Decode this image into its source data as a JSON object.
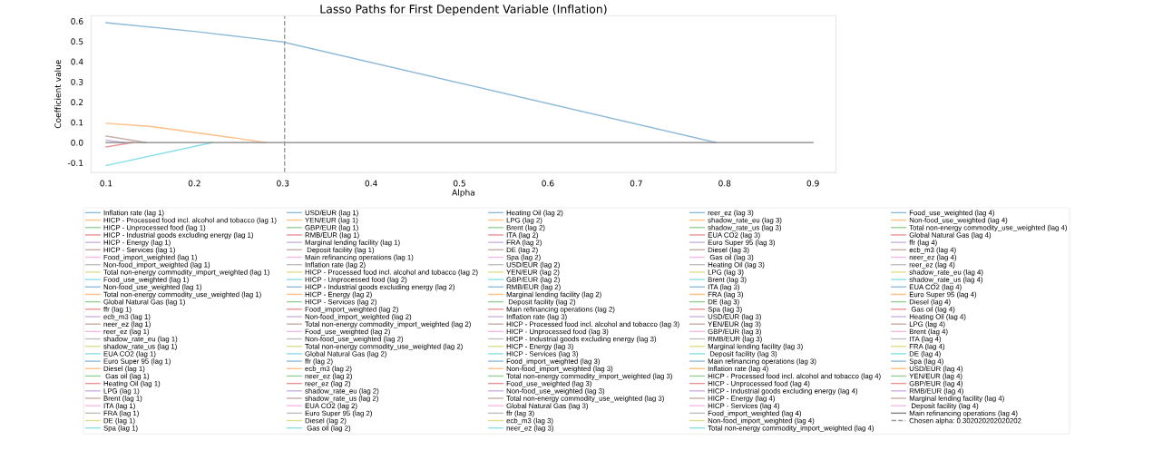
{
  "chart_data": {
    "type": "line",
    "title": "Lasso Paths for First Dependent Variable (Inflation)",
    "xlabel": "Alpha",
    "ylabel": "Coefficient value",
    "xlim": [
      0.083,
      0.926
    ],
    "xticks": [
      0.1,
      0.2,
      0.3,
      0.4,
      0.5,
      0.6,
      0.7,
      0.8,
      0.9
    ],
    "ylim": [
      -0.148,
      0.627
    ],
    "yticks": [
      -0.1,
      {
        "value": 0,
        "label": "0.0"
      },
      0.1,
      0.2,
      0.3,
      0.4,
      0.5,
      0.6
    ],
    "grid": false,
    "legend": "bottom",
    "marker": "none",
    "line_style": "solid",
    "ref_lines": [
      {
        "axis": "x",
        "value": 0.302020202020202,
        "label": "Chosen alpha: 0.302020202020202",
        "color": "#999999",
        "line_style": "dashed"
      }
    ],
    "series": [
      {
        "name": "Inflation rate (lag 1)",
        "color": "#8fbbda",
        "x": [
          0.1,
          0.11,
          0.2,
          0.27,
          0.3,
          0.79
        ],
        "values": [
          0.592,
          0.588,
          0.549,
          0.513,
          0.497,
          0
        ]
      },
      {
        "name": "HICP - Processed food incl. alcohol and tobacco (lag 1)",
        "color": "#ffbf87",
        "x": [
          0.1,
          0.15,
          0.2,
          0.25,
          0.28
        ],
        "values": [
          0.095,
          0.08,
          0.05,
          0.02,
          0
        ]
      },
      {
        "name": "HICP - Unprocessed food (lag 1)",
        "color": "#96d096"
      },
      {
        "name": "HICP - Industrial goods excluding energy (lag 1)",
        "color": "#eb9394",
        "x": [
          0.1,
          0.13
        ],
        "values": [
          -0.022,
          0
        ]
      },
      {
        "name": "HICP - Energy (lag 1)",
        "color": "#cab3de",
        "x": [
          0.1,
          0.12
        ],
        "values": [
          0.012,
          0
        ]
      },
      {
        "name": "HICP - Services (lag 1)",
        "color": "#c6aba5",
        "x": [
          0.1,
          0.145
        ],
        "values": [
          0.032,
          0
        ]
      },
      {
        "name": "Food_import_weighted (lag 1)",
        "color": "#f1bbe1"
      },
      {
        "name": "Non-food_import_weighted (lag 1)",
        "color": "#bfbfbf"
      },
      {
        "name": "Total non-energy commodity_import_weighted (lag 1)",
        "color": "#dede91"
      },
      {
        "name": "Food_use_weighted (lag 1)",
        "color": "#8bdfe7",
        "x": [
          0.1,
          0.22
        ],
        "values": [
          -0.113,
          0
        ]
      },
      {
        "name": "Non-food_use_weighted (lag 1)",
        "color": "#8fbbda"
      },
      {
        "name": "Total non-energy commodity_use_weighted (lag 1)",
        "color": "#ffbf87"
      },
      {
        "name": "Global Natural Gas (lag 1)",
        "color": "#96d096"
      },
      {
        "name": "ffr (lag 1)",
        "color": "#eb9394"
      },
      {
        "name": "ecb_m3 (lag 1)",
        "color": "#cab3de"
      },
      {
        "name": "neer_ez (lag 1)",
        "color": "#c6aba5"
      },
      {
        "name": "reer_ez (lag 1)",
        "color": "#f1bbe1"
      },
      {
        "name": "shadow_rate_eu (lag 1)",
        "color": "#bfbfbf"
      },
      {
        "name": "shadow_rate_us (lag 1)",
        "color": "#dede91"
      },
      {
        "name": "EUA CO2 (lag 1)",
        "color": "#8bdfe7"
      },
      {
        "name": "Euro Super 95 (lag 1)",
        "color": "#8fbbda"
      },
      {
        "name": "Diesel (lag 1)",
        "color": "#ffbf87"
      },
      {
        "name": " Gas oil (lag 1)",
        "color": "#96d096"
      },
      {
        "name": "Heating Oil (lag 1)",
        "color": "#eb9394"
      },
      {
        "name": "LPG (lag 1)",
        "color": "#cab3de"
      },
      {
        "name": "Brent (lag 1)",
        "color": "#c6aba5"
      },
      {
        "name": "ITA (lag 1)",
        "color": "#f1bbe1"
      },
      {
        "name": "FRA (lag 1)",
        "color": "#bfbfbf"
      },
      {
        "name": "DE (lag 1)",
        "color": "#dede91"
      },
      {
        "name": "Spa (lag 1)",
        "color": "#8bdfe7"
      },
      {
        "name": "USD/EUR (lag 1)",
        "color": "#8fbbda"
      },
      {
        "name": "YEN/EUR (lag 1)",
        "color": "#ffbf87"
      },
      {
        "name": "GBP/EUR (lag 1)",
        "color": "#96d096"
      },
      {
        "name": "RMB/EUR (lag 1)",
        "color": "#eb9394"
      },
      {
        "name": "Marginal lending facility (lag 1)",
        "color": "#cab3de"
      },
      {
        "name": " Deposit facility (lag 1)",
        "color": "#c6aba5"
      },
      {
        "name": "Main refinancing operations (lag 1)",
        "color": "#f1bbe1"
      },
      {
        "name": "Inflation rate (lag 2)",
        "color": "#bfbfbf"
      },
      {
        "name": "HICP - Processed food incl. alcohol and tobacco (lag 2)",
        "color": "#dede91"
      },
      {
        "name": "HICP - Unprocessed food (lag 2)",
        "color": "#8bdfe7"
      },
      {
        "name": "HICP - Industrial goods excluding energy (lag 2)",
        "color": "#8fbbda"
      },
      {
        "name": "HICP - Energy (lag 2)",
        "color": "#ffbf87"
      },
      {
        "name": "HICP - Services (lag 2)",
        "color": "#96d096"
      },
      {
        "name": "Food_import_weighted (lag 2)",
        "color": "#eb9394"
      },
      {
        "name": "Non-food_import_weighted (lag 2)",
        "color": "#cab3de"
      },
      {
        "name": "Total non-energy commodity_import_weighted (lag 2)",
        "color": "#c6aba5"
      },
      {
        "name": "Food_use_weighted (lag 2)",
        "color": "#f1bbe1"
      },
      {
        "name": "Non-food_use_weighted (lag 2)",
        "color": "#bfbfbf"
      },
      {
        "name": "Total non-energy commodity_use_weighted (lag 2)",
        "color": "#dede91"
      },
      {
        "name": "Global Natural Gas (lag 2)",
        "color": "#8bdfe7"
      },
      {
        "name": "ffr (lag 2)",
        "color": "#8fbbda"
      },
      {
        "name": "ecb_m3 (lag 2)",
        "color": "#ffbf87"
      },
      {
        "name": "neer_ez (lag 2)",
        "color": "#96d096"
      },
      {
        "name": "reer_ez (lag 2)",
        "color": "#eb9394"
      },
      {
        "name": "shadow_rate_eu (lag 2)",
        "color": "#cab3de"
      },
      {
        "name": "shadow_rate_us (lag 2)",
        "color": "#c6aba5"
      },
      {
        "name": "EUA CO2 (lag 2)",
        "color": "#f1bbe1"
      },
      {
        "name": "Euro Super 95 (lag 2)",
        "color": "#bfbfbf"
      },
      {
        "name": "Diesel (lag 2)",
        "color": "#dede91"
      },
      {
        "name": " Gas oil (lag 2)",
        "color": "#8bdfe7"
      },
      {
        "name": "Heating Oil (lag 2)",
        "color": "#8fbbda"
      },
      {
        "name": "LPG (lag 2)",
        "color": "#ffbf87"
      },
      {
        "name": "Brent (lag 2)",
        "color": "#96d096"
      },
      {
        "name": "ITA (lag 2)",
        "color": "#eb9394"
      },
      {
        "name": "FRA (lag 2)",
        "color": "#cab3de"
      },
      {
        "name": "DE (lag 2)",
        "color": "#c6aba5"
      },
      {
        "name": "Spa (lag 2)",
        "color": "#f1bbe1"
      },
      {
        "name": "USD/EUR (lag 2)",
        "color": "#bfbfbf"
      },
      {
        "name": "YEN/EUR (lag 2)",
        "color": "#dede91"
      },
      {
        "name": "GBP/EUR (lag 2)",
        "color": "#8bdfe7"
      },
      {
        "name": "RMB/EUR (lag 2)",
        "color": "#8fbbda"
      },
      {
        "name": "Marginal lending facility (lag 2)",
        "color": "#ffbf87"
      },
      {
        "name": " Deposit facility (lag 2)",
        "color": "#96d096"
      },
      {
        "name": "Main refinancing operations (lag 2)",
        "color": "#eb9394"
      },
      {
        "name": "Inflation rate (lag 3)",
        "color": "#cab3de"
      },
      {
        "name": "HICP - Processed food incl. alcohol and tobacco (lag 3)",
        "color": "#c6aba5"
      },
      {
        "name": "HICP - Unprocessed food (lag 3)",
        "color": "#f1bbe1"
      },
      {
        "name": "HICP - Industrial goods excluding energy (lag 3)",
        "color": "#bfbfbf"
      },
      {
        "name": "HICP - Energy (lag 3)",
        "color": "#dede91"
      },
      {
        "name": "HICP - Services (lag 3)",
        "color": "#8bdfe7"
      },
      {
        "name": "Food_import_weighted (lag 3)",
        "color": "#8fbbda"
      },
      {
        "name": "Non-food_import_weighted (lag 3)",
        "color": "#ffbf87"
      },
      {
        "name": "Total non-energy commodity_import_weighted (lag 3)",
        "color": "#96d096"
      },
      {
        "name": "Food_use_weighted (lag 3)",
        "color": "#eb9394"
      },
      {
        "name": "Non-food_use_weighted (lag 3)",
        "color": "#cab3de"
      },
      {
        "name": "Total non-energy commodity_use_weighted (lag 3)",
        "color": "#c6aba5"
      },
      {
        "name": "Global Natural Gas (lag 3)",
        "color": "#f1bbe1"
      },
      {
        "name": "ffr (lag 3)",
        "color": "#bfbfbf"
      },
      {
        "name": "ecb_m3 (lag 3)",
        "color": "#dede91"
      },
      {
        "name": "neer_ez (lag 3)",
        "color": "#8bdfe7"
      },
      {
        "name": "reer_ez (lag 3)",
        "color": "#8fbbda"
      },
      {
        "name": "shadow_rate_eu (lag 3)",
        "color": "#ffbf87"
      },
      {
        "name": "shadow_rate_us (lag 3)",
        "color": "#96d096"
      },
      {
        "name": "EUA CO2 (lag 3)",
        "color": "#eb9394"
      },
      {
        "name": "Euro Super 95 (lag 3)",
        "color": "#cab3de"
      },
      {
        "name": "Diesel (lag 3)",
        "color": "#c6aba5"
      },
      {
        "name": " Gas oil (lag 3)",
        "color": "#f1bbe1"
      },
      {
        "name": "Heating Oil (lag 3)",
        "color": "#bfbfbf"
      },
      {
        "name": "LPG (lag 3)",
        "color": "#dede91"
      },
      {
        "name": "Brent (lag 3)",
        "color": "#8bdfe7"
      },
      {
        "name": "ITA (lag 3)",
        "color": "#8fbbda"
      },
      {
        "name": "FRA (lag 3)",
        "color": "#ffbf87"
      },
      {
        "name": "DE (lag 3)",
        "color": "#96d096"
      },
      {
        "name": "Spa (lag 3)",
        "color": "#eb9394"
      },
      {
        "name": "USD/EUR (lag 3)",
        "color": "#cab3de"
      },
      {
        "name": "YEN/EUR (lag 3)",
        "color": "#c6aba5"
      },
      {
        "name": "GBP/EUR (lag 3)",
        "color": "#f1bbe1"
      },
      {
        "name": "RMB/EUR (lag 3)",
        "color": "#bfbfbf"
      },
      {
        "name": "Marginal lending facility (lag 3)",
        "color": "#dede91"
      },
      {
        "name": " Deposit facility (lag 3)",
        "color": "#8bdfe7"
      },
      {
        "name": "Main refinancing operations (lag 3)",
        "color": "#8fbbda"
      },
      {
        "name": "Inflation rate (lag 4)",
        "color": "#ffbf87"
      },
      {
        "name": "HICP - Processed food incl. alcohol and tobacco (lag 4)",
        "color": "#96d096"
      },
      {
        "name": "HICP - Unprocessed food (lag 4)",
        "color": "#eb9394"
      },
      {
        "name": "HICP - Industrial goods excluding energy (lag 4)",
        "color": "#cab3de"
      },
      {
        "name": "HICP - Energy (lag 4)",
        "color": "#c6aba5"
      },
      {
        "name": "HICP - Services (lag 4)",
        "color": "#f1bbe1"
      },
      {
        "name": "Food_import_weighted (lag 4)",
        "color": "#bfbfbf"
      },
      {
        "name": "Non-food_import_weighted (lag 4)",
        "color": "#dede91"
      },
      {
        "name": "Total non-energy commodity_import_weighted (lag 4)",
        "color": "#8bdfe7"
      },
      {
        "name": "Food_use_weighted (lag 4)",
        "color": "#8fbbda"
      },
      {
        "name": "Non-food_use_weighted (lag 4)",
        "color": "#ffbf87"
      },
      {
        "name": "Total non-energy commodity_use_weighted (lag 4)",
        "color": "#96d096"
      },
      {
        "name": "Global Natural Gas (lag 4)",
        "color": "#eb9394"
      },
      {
        "name": "ffr (lag 4)",
        "color": "#cab3de"
      },
      {
        "name": "ecb_m3 (lag 4)",
        "color": "#c6aba5"
      },
      {
        "name": "neer_ez (lag 4)",
        "color": "#f1bbe1"
      },
      {
        "name": "reer_ez (lag 4)",
        "color": "#bfbfbf"
      },
      {
        "name": "shadow_rate_eu (lag 4)",
        "color": "#dede91"
      },
      {
        "name": "shadow_rate_us (lag 4)",
        "color": "#8bdfe7"
      },
      {
        "name": "EUA CO2 (lag 4)",
        "color": "#8fbbda"
      },
      {
        "name": "Euro Super 95 (lag 4)",
        "color": "#ffbf87"
      },
      {
        "name": "Diesel (lag 4)",
        "color": "#96d096"
      },
      {
        "name": " Gas oil (lag 4)",
        "color": "#eb9394"
      },
      {
        "name": "Heating Oil (lag 4)",
        "color": "#cab3de"
      },
      {
        "name": "LPG (lag 4)",
        "color": "#c6aba5"
      },
      {
        "name": "Brent (lag 4)",
        "color": "#f1bbe1"
      },
      {
        "name": "ITA (lag 4)",
        "color": "#bfbfbf"
      },
      {
        "name": "FRA (lag 4)",
        "color": "#dede91"
      },
      {
        "name": "DE (lag 4)",
        "color": "#8bdfe7"
      },
      {
        "name": "Spa (lag 4)",
        "color": "#8fbbda"
      },
      {
        "name": "USD/EUR (lag 4)",
        "color": "#ffbf87"
      },
      {
        "name": "YEN/EUR (lag 4)",
        "color": "#96d096"
      },
      {
        "name": "GBP/EUR (lag 4)",
        "color": "#eb9394"
      },
      {
        "name": "RMB/EUR (lag 4)",
        "color": "#cab3de"
      },
      {
        "name": "Marginal lending facility (lag 4)",
        "color": "#c6aba5"
      },
      {
        "name": " Deposit facility (lag 4)",
        "color": "#f1bbe1"
      },
      {
        "name": "Main refinancing operations (lag 4)",
        "color": "#808080",
        "x": [
          0.1,
          0.9
        ],
        "values": [
          0,
          0
        ]
      }
    ]
  }
}
